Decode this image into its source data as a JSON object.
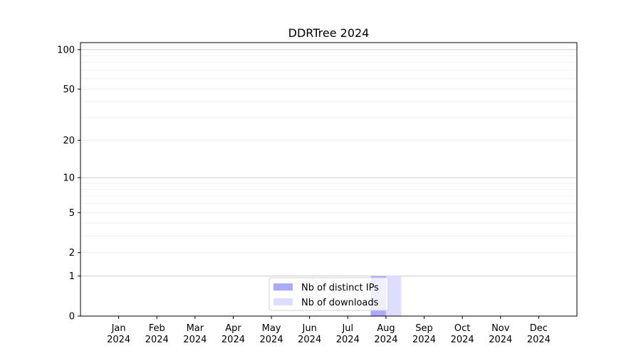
{
  "chart_data": {
    "type": "bar",
    "title": "DDRTree 2024",
    "xlabel": "",
    "ylabel": "",
    "yscale": "log(1+y)",
    "ylim": [
      0,
      113
    ],
    "yticks": [
      0,
      1,
      2,
      5,
      10,
      20,
      50,
      100
    ],
    "categories": [
      "Jan\n2024",
      "Feb\n2024",
      "Mar\n2024",
      "Apr\n2024",
      "May\n2024",
      "Jun\n2024",
      "Jul\n2024",
      "Aug\n2024",
      "Sep\n2024",
      "Oct\n2024",
      "Nov\n2024",
      "Dec\n2024"
    ],
    "series": [
      {
        "name": "Nb of distinct IPs",
        "color": "#aaaaff",
        "values": [
          0,
          0,
          0,
          0,
          0,
          0,
          0,
          1,
          0,
          0,
          0,
          0
        ]
      },
      {
        "name": "Nb of downloads",
        "color": "#ddddff",
        "values": [
          0,
          0,
          0,
          0,
          0,
          0,
          0,
          1,
          0,
          0,
          0,
          0
        ]
      }
    ],
    "grid": true,
    "legend_position": "lower-center"
  }
}
